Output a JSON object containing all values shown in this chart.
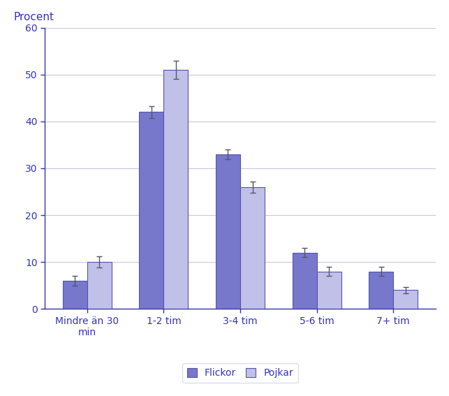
{
  "categories": [
    "Mindre än 30\nmin",
    "1-2 tim",
    "3-4 tim",
    "5-6 tim",
    "7+ tim"
  ],
  "flickor_values": [
    6,
    42,
    33,
    12,
    8
  ],
  "pojkar_values": [
    10,
    51,
    26,
    8,
    4
  ],
  "flickor_errors": [
    1.0,
    1.2,
    1.0,
    1.0,
    1.0
  ],
  "pojkar_errors": [
    1.2,
    2.0,
    1.2,
    1.0,
    0.7
  ],
  "flickor_color": "#7777cc",
  "pojkar_color": "#c0c0e8",
  "ylabel": "Procent",
  "ylim": [
    0,
    60
  ],
  "yticks": [
    0,
    10,
    20,
    30,
    40,
    50,
    60
  ],
  "ytick_labels": [
    "0",
    "10",
    "20",
    "30",
    "40",
    "50",
    "60"
  ],
  "legend_labels": [
    "Flickor",
    "Pojkar"
  ],
  "bar_width": 0.32,
  "grid_color": "#c8c8e0",
  "axis_color": "#3333aa",
  "background_color": "#ffffff",
  "text_color": "#3333bb",
  "border_color": "#5555aa",
  "border_width": 0.8
}
